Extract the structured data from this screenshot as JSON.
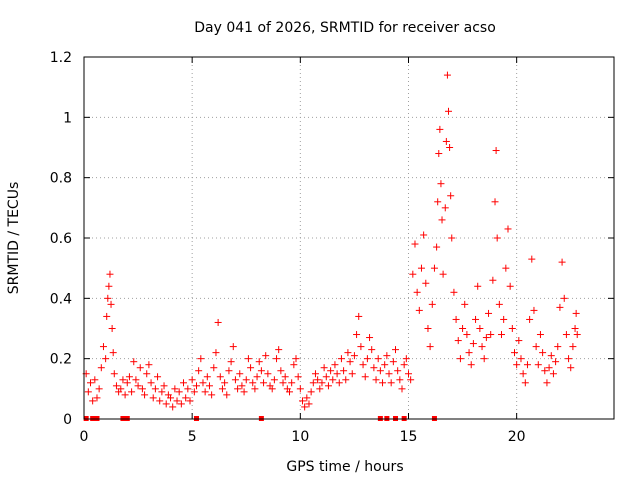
{
  "chart_data": {
    "type": "scatter",
    "title": "Day 041 of 2026, SRMTID for receiver acso",
    "xlabel": "GPS time / hours",
    "ylabel": "SRMTID / TECUs",
    "xlim": [
      0,
      24.5
    ],
    "ylim": [
      0,
      1.2
    ],
    "x_ticks": [
      {
        "value": 0,
        "label": "0"
      },
      {
        "value": 5,
        "label": "5"
      },
      {
        "value": 10,
        "label": "10"
      },
      {
        "value": 15,
        "label": "15"
      },
      {
        "value": 20,
        "label": "20"
      }
    ],
    "y_ticks": [
      {
        "value": 0,
        "label": "0"
      },
      {
        "value": 0.2,
        "label": "0.2"
      },
      {
        "value": 0.4,
        "label": "0.4"
      },
      {
        "value": 0.6,
        "label": "0.6"
      },
      {
        "value": 0.8,
        "label": "0.8"
      },
      {
        "value": 1.0,
        "label": "1"
      },
      {
        "value": 1.2,
        "label": "1.2"
      }
    ],
    "grid": true,
    "marker": "plus",
    "color": "#ff0000",
    "series": [
      {
        "name": "SRMTID",
        "points": [
          [
            0.1,
            0.15
          ],
          [
            0.2,
            0.09
          ],
          [
            0.3,
            0.12
          ],
          [
            0.4,
            0.06
          ],
          [
            0.5,
            0.13
          ],
          [
            0.6,
            0.07
          ],
          [
            0.7,
            0.1
          ],
          [
            0.8,
            0.17
          ],
          [
            0.9,
            0.24
          ],
          [
            1.0,
            0.2
          ],
          [
            1.05,
            0.34
          ],
          [
            1.1,
            0.4
          ],
          [
            1.15,
            0.44
          ],
          [
            1.2,
            0.48
          ],
          [
            1.25,
            0.38
          ],
          [
            1.3,
            0.3
          ],
          [
            1.35,
            0.22
          ],
          [
            1.4,
            0.15
          ],
          [
            1.5,
            0.11
          ],
          [
            1.6,
            0.09
          ],
          [
            1.7,
            0.1
          ],
          [
            1.8,
            0.13
          ],
          [
            1.9,
            0.08
          ],
          [
            2.0,
            0.12
          ],
          [
            2.1,
            0.14
          ],
          [
            2.2,
            0.09
          ],
          [
            2.3,
            0.19
          ],
          [
            2.4,
            0.13
          ],
          [
            2.5,
            0.11
          ],
          [
            2.6,
            0.17
          ],
          [
            2.7,
            0.1
          ],
          [
            2.8,
            0.08
          ],
          [
            2.9,
            0.15
          ],
          [
            3.0,
            0.18
          ],
          [
            3.1,
            0.12
          ],
          [
            3.2,
            0.07
          ],
          [
            3.3,
            0.1
          ],
          [
            3.4,
            0.14
          ],
          [
            3.5,
            0.06
          ],
          [
            3.6,
            0.09
          ],
          [
            3.7,
            0.11
          ],
          [
            3.8,
            0.05
          ],
          [
            3.9,
            0.08
          ],
          [
            4.0,
            0.07
          ],
          [
            4.1,
            0.04
          ],
          [
            4.2,
            0.1
          ],
          [
            4.3,
            0.06
          ],
          [
            4.4,
            0.09
          ],
          [
            4.5,
            0.05
          ],
          [
            4.6,
            0.12
          ],
          [
            4.7,
            0.07
          ],
          [
            4.8,
            0.1
          ],
          [
            4.9,
            0.06
          ],
          [
            5.0,
            0.13
          ],
          [
            5.1,
            0.09
          ],
          [
            5.2,
            0.11
          ],
          [
            5.3,
            0.16
          ],
          [
            5.4,
            0.2
          ],
          [
            5.5,
            0.12
          ],
          [
            5.6,
            0.09
          ],
          [
            5.7,
            0.14
          ],
          [
            5.8,
            0.11
          ],
          [
            5.9,
            0.08
          ],
          [
            6.0,
            0.17
          ],
          [
            6.1,
            0.22
          ],
          [
            6.2,
            0.32
          ],
          [
            6.3,
            0.14
          ],
          [
            6.4,
            0.1
          ],
          [
            6.5,
            0.12
          ],
          [
            6.6,
            0.08
          ],
          [
            6.7,
            0.16
          ],
          [
            6.8,
            0.19
          ],
          [
            6.9,
            0.24
          ],
          [
            7.0,
            0.13
          ],
          [
            7.1,
            0.1
          ],
          [
            7.2,
            0.15
          ],
          [
            7.3,
            0.11
          ],
          [
            7.4,
            0.09
          ],
          [
            7.5,
            0.13
          ],
          [
            7.6,
            0.2
          ],
          [
            7.7,
            0.17
          ],
          [
            7.8,
            0.12
          ],
          [
            7.9,
            0.1
          ],
          [
            8.0,
            0.14
          ],
          [
            8.1,
            0.19
          ],
          [
            8.2,
            0.16
          ],
          [
            8.3,
            0.12
          ],
          [
            8.4,
            0.21
          ],
          [
            8.5,
            0.15
          ],
          [
            8.6,
            0.11
          ],
          [
            8.7,
            0.1
          ],
          [
            8.8,
            0.13
          ],
          [
            8.9,
            0.2
          ],
          [
            9.0,
            0.23
          ],
          [
            9.1,
            0.16
          ],
          [
            9.2,
            0.12
          ],
          [
            9.3,
            0.14
          ],
          [
            9.4,
            0.1
          ],
          [
            9.5,
            0.09
          ],
          [
            9.6,
            0.12
          ],
          [
            9.7,
            0.18
          ],
          [
            9.8,
            0.2
          ],
          [
            9.9,
            0.14
          ],
          [
            10.0,
            0.1
          ],
          [
            10.1,
            0.06
          ],
          [
            10.2,
            0.04
          ],
          [
            10.3,
            0.07
          ],
          [
            10.4,
            0.05
          ],
          [
            10.5,
            0.09
          ],
          [
            10.6,
            0.12
          ],
          [
            10.7,
            0.15
          ],
          [
            10.8,
            0.13
          ],
          [
            10.9,
            0.1
          ],
          [
            11.0,
            0.12
          ],
          [
            11.1,
            0.17
          ],
          [
            11.2,
            0.14
          ],
          [
            11.3,
            0.11
          ],
          [
            11.4,
            0.16
          ],
          [
            11.5,
            0.13
          ],
          [
            11.6,
            0.18
          ],
          [
            11.7,
            0.15
          ],
          [
            11.8,
            0.12
          ],
          [
            11.9,
            0.2
          ],
          [
            12.0,
            0.16
          ],
          [
            12.1,
            0.13
          ],
          [
            12.2,
            0.22
          ],
          [
            12.3,
            0.19
          ],
          [
            12.4,
            0.15
          ],
          [
            12.5,
            0.21
          ],
          [
            12.6,
            0.28
          ],
          [
            12.7,
            0.34
          ],
          [
            12.8,
            0.24
          ],
          [
            12.9,
            0.18
          ],
          [
            13.0,
            0.14
          ],
          [
            13.1,
            0.2
          ],
          [
            13.2,
            0.27
          ],
          [
            13.3,
            0.23
          ],
          [
            13.4,
            0.17
          ],
          [
            13.5,
            0.13
          ],
          [
            13.6,
            0.2
          ],
          [
            13.7,
            0.16
          ],
          [
            13.8,
            0.12
          ],
          [
            13.9,
            0.18
          ],
          [
            14.0,
            0.21
          ],
          [
            14.1,
            0.15
          ],
          [
            14.2,
            0.12
          ],
          [
            14.3,
            0.19
          ],
          [
            14.4,
            0.23
          ],
          [
            14.5,
            0.16
          ],
          [
            14.6,
            0.13
          ],
          [
            14.7,
            0.1
          ],
          [
            14.8,
            0.18
          ],
          [
            14.9,
            0.2
          ],
          [
            15.0,
            0.15
          ],
          [
            15.1,
            0.13
          ],
          [
            15.2,
            0.48
          ],
          [
            15.3,
            0.58
          ],
          [
            15.4,
            0.42
          ],
          [
            15.5,
            0.36
          ],
          [
            15.6,
            0.5
          ],
          [
            15.7,
            0.61
          ],
          [
            15.8,
            0.45
          ],
          [
            15.9,
            0.3
          ],
          [
            16.0,
            0.24
          ],
          [
            16.1,
            0.38
          ],
          [
            16.2,
            0.5
          ],
          [
            16.3,
            0.57
          ],
          [
            16.35,
            0.72
          ],
          [
            16.4,
            0.88
          ],
          [
            16.45,
            0.96
          ],
          [
            16.5,
            0.78
          ],
          [
            16.55,
            0.66
          ],
          [
            16.6,
            0.48
          ],
          [
            16.7,
            0.7
          ],
          [
            16.75,
            0.92
          ],
          [
            16.8,
            1.14
          ],
          [
            16.85,
            1.02
          ],
          [
            16.9,
            0.9
          ],
          [
            16.95,
            0.74
          ],
          [
            17.0,
            0.6
          ],
          [
            17.1,
            0.42
          ],
          [
            17.2,
            0.33
          ],
          [
            17.3,
            0.26
          ],
          [
            17.4,
            0.2
          ],
          [
            17.5,
            0.3
          ],
          [
            17.6,
            0.38
          ],
          [
            17.7,
            0.28
          ],
          [
            17.8,
            0.22
          ],
          [
            17.9,
            0.18
          ],
          [
            18.0,
            0.25
          ],
          [
            18.1,
            0.33
          ],
          [
            18.2,
            0.44
          ],
          [
            18.3,
            0.3
          ],
          [
            18.4,
            0.24
          ],
          [
            18.5,
            0.2
          ],
          [
            18.6,
            0.27
          ],
          [
            18.7,
            0.35
          ],
          [
            18.8,
            0.28
          ],
          [
            18.9,
            0.46
          ],
          [
            19.0,
            0.72
          ],
          [
            19.05,
            0.89
          ],
          [
            19.1,
            0.6
          ],
          [
            19.2,
            0.38
          ],
          [
            19.3,
            0.28
          ],
          [
            19.4,
            0.33
          ],
          [
            19.5,
            0.5
          ],
          [
            19.6,
            0.63
          ],
          [
            19.7,
            0.44
          ],
          [
            19.8,
            0.3
          ],
          [
            19.9,
            0.22
          ],
          [
            20.0,
            0.18
          ],
          [
            20.1,
            0.26
          ],
          [
            20.2,
            0.2
          ],
          [
            20.3,
            0.15
          ],
          [
            20.4,
            0.12
          ],
          [
            20.5,
            0.18
          ],
          [
            20.6,
            0.33
          ],
          [
            20.7,
            0.53
          ],
          [
            20.8,
            0.36
          ],
          [
            20.9,
            0.24
          ],
          [
            21.0,
            0.18
          ],
          [
            21.1,
            0.28
          ],
          [
            21.2,
            0.22
          ],
          [
            21.3,
            0.16
          ],
          [
            21.4,
            0.12
          ],
          [
            21.5,
            0.17
          ],
          [
            21.6,
            0.21
          ],
          [
            21.7,
            0.15
          ],
          [
            21.8,
            0.19
          ],
          [
            21.9,
            0.24
          ],
          [
            22.0,
            0.37
          ],
          [
            22.1,
            0.52
          ],
          [
            22.2,
            0.4
          ],
          [
            22.3,
            0.28
          ],
          [
            22.4,
            0.2
          ],
          [
            22.5,
            0.17
          ],
          [
            22.6,
            0.24
          ],
          [
            22.7,
            0.3
          ],
          [
            22.75,
            0.35
          ],
          [
            22.8,
            0.28
          ]
        ]
      }
    ],
    "gap_markers_x": [
      0.1,
      0.4,
      0.6,
      1.8,
      2.0,
      5.2,
      8.2,
      13.7,
      14.0,
      14.4,
      14.8,
      16.2
    ]
  }
}
